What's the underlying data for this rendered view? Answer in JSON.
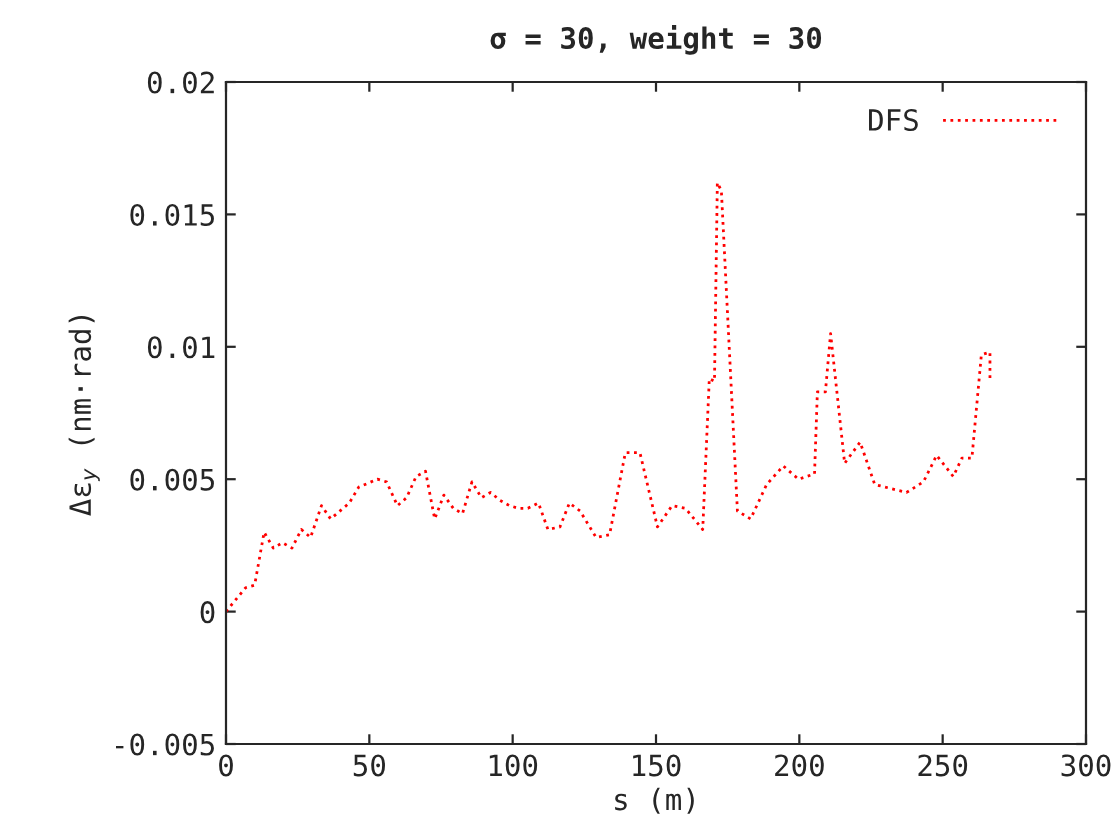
{
  "chart_data": {
    "type": "line",
    "title": "σ = 30, weight = 30",
    "xlabel": "s (m)",
    "ylabel": "Δε$_{y}$ (nm·rad)",
    "x": [
      0,
      6.8,
      10.0,
      13.3,
      16.5,
      19.7,
      23.0,
      26.3,
      29.5,
      33.3,
      36.5,
      43.0,
      46.3,
      52.8,
      56.0,
      59.8,
      63.0,
      66.3,
      69.6,
      72.8,
      76.0,
      79.3,
      82.5,
      85.8,
      89.1,
      92.3,
      95.6,
      98.9,
      102.1,
      105.3,
      109.0,
      112.3,
      116.5,
      119.8,
      123.5,
      129.1,
      133.8,
      139.3,
      144.4,
      150.5,
      155.6,
      160.3,
      166.3,
      168.6,
      170.4,
      171.4,
      172.8,
      178.4,
      183.0,
      188.6,
      194.4,
      199.7,
      205.3,
      206.3,
      209.1,
      210.9,
      215.8,
      221.2,
      226.3,
      237.4,
      243.3,
      247.9,
      253.7,
      256.7,
      260.2,
      263.5,
      266.5,
      266.5
    ],
    "series": [
      {
        "name": "DFS",
        "color": "#ff0000",
        "values": [
          0,
          0.0009,
          0.001,
          0.003,
          0.0024,
          0.0026,
          0.0024,
          0.0031,
          0.0028,
          0.004,
          0.0035,
          0.0041,
          0.0047,
          0.005,
          0.0049,
          0.004,
          0.0043,
          0.0051,
          0.0053,
          0.0035,
          0.0044,
          0.0039,
          0.0037,
          0.0049,
          0.0043,
          0.0045,
          0.0042,
          0.004,
          0.0039,
          0.0039,
          0.0041,
          0.0031,
          0.0032,
          0.0041,
          0.0038,
          0.0028,
          0.0029,
          0.006,
          0.006,
          0.0032,
          0.004,
          0.0039,
          0.0031,
          0.0088,
          0.0087,
          0.0162,
          0.0159,
          0.0038,
          0.0035,
          0.0048,
          0.0055,
          0.005,
          0.0052,
          0.0083,
          0.0083,
          0.0105,
          0.0056,
          0.0064,
          0.0048,
          0.0045,
          0.0049,
          0.0059,
          0.0051,
          0.0058,
          0.0058,
          0.0097,
          0.0098,
          0.0087
        ]
      }
    ],
    "xlim": [
      0,
      300
    ],
    "xticks": [
      0,
      50,
      100,
      150,
      200,
      250,
      300
    ],
    "ylim": [
      -0.005,
      0.02
    ],
    "yticks": [
      -0.005,
      0,
      0.005,
      0.01,
      0.015,
      0.02
    ],
    "legend": "top right",
    "line_style": "dotted",
    "marker": "none",
    "grid": false
  }
}
